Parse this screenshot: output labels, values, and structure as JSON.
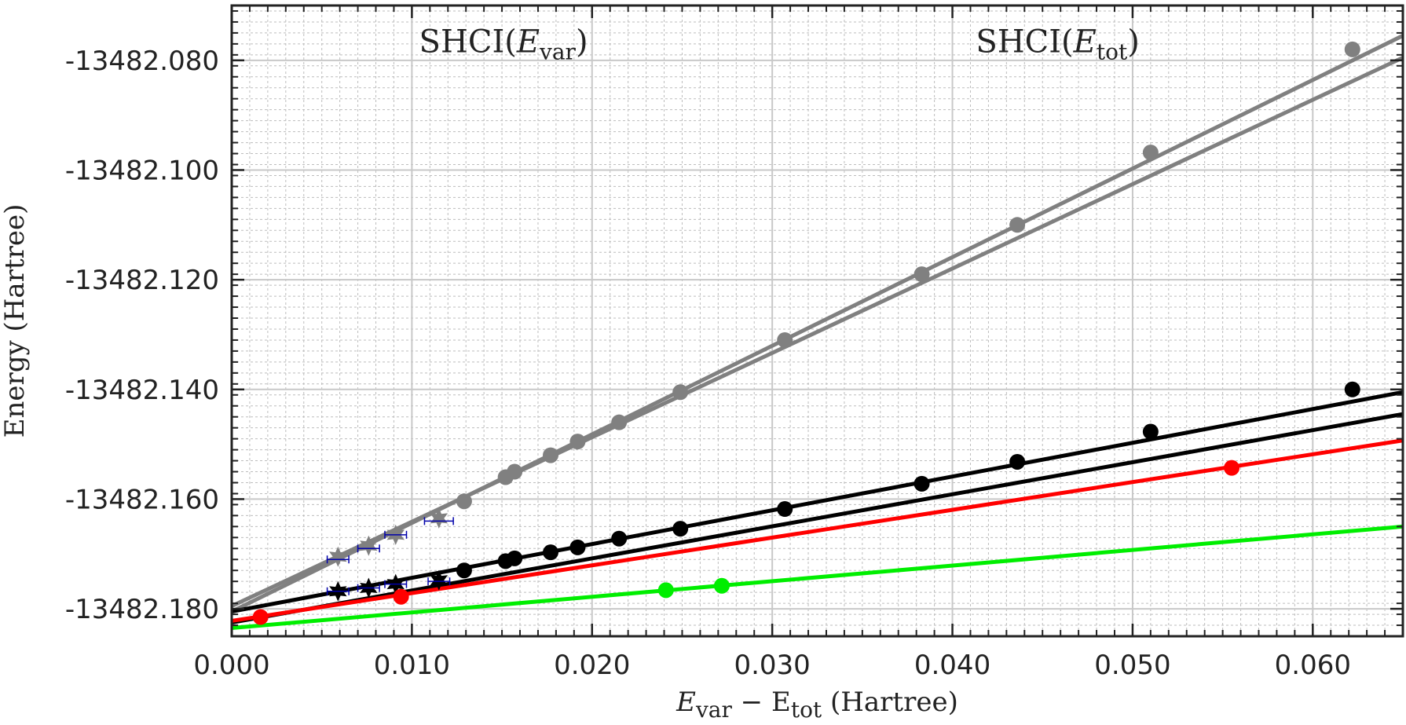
{
  "chart_data": {
    "type": "scatter",
    "title": "",
    "xlabel": {
      "prefix": "E",
      "sub1": "var",
      "mid": " − E",
      "sub2": "tot",
      "suffix": " (Hartree)"
    },
    "ylabel": "Energy (Hartree)",
    "xlim": [
      0.0,
      0.065
    ],
    "ylim": [
      -13482.185,
      -13482.07
    ],
    "x_ticks": [
      0.0,
      0.01,
      0.02,
      0.03,
      0.04,
      0.05,
      0.06
    ],
    "x_tick_labels": [
      "0.000",
      "0.010",
      "0.020",
      "0.030",
      "0.040",
      "0.050",
      "0.060"
    ],
    "y_ticks": [
      -13482.18,
      -13482.16,
      -13482.14,
      -13482.12,
      -13482.1,
      -13482.08
    ],
    "y_tick_labels": [
      "-13482.180",
      "-13482.160",
      "-13482.140",
      "-13482.120",
      "-13482.100",
      "-13482.080"
    ],
    "grid": true,
    "annotations": [
      {
        "x": 0.0104,
        "y": -13482.0765,
        "prefix": "SHCI(",
        "var": "E",
        "sub": "var",
        "suffix": ")"
      },
      {
        "x": 0.0413,
        "y": -13482.0765,
        "prefix": "SHCI(",
        "var": "E",
        "sub": "tot",
        "suffix": ")"
      }
    ],
    "series": [
      {
        "color": "#808080",
        "marker": "circle",
        "x": [
          0.0129,
          0.0152,
          0.0157,
          0.0177,
          0.0192,
          0.0215,
          0.0249,
          0.0307,
          0.0383,
          0.0436,
          0.051,
          0.0622
        ],
        "y": [
          -13482.1604,
          -13482.156,
          -13482.155,
          -13482.152,
          -13482.1495,
          -13482.146,
          -13482.1405,
          -13482.131,
          -13482.119,
          -13482.11,
          -13482.0968,
          -13482.078
        ]
      },
      {
        "color": "#808080",
        "marker": "star",
        "x": [
          0.0059,
          0.0076,
          0.0091,
          0.0115
        ],
        "y": [
          -13482.1705,
          -13482.1685,
          -13482.1665,
          -13482.1635
        ]
      },
      {
        "color": "#000000",
        "marker": "circle",
        "x": [
          0.0129,
          0.0152,
          0.0157,
          0.0177,
          0.0192,
          0.0215,
          0.0249,
          0.0307,
          0.0383,
          0.0436,
          0.051,
          0.0622
        ],
        "y": [
          -13482.173,
          -13482.1713,
          -13482.1708,
          -13482.1697,
          -13482.1688,
          -13482.1672,
          -13482.1654,
          -13482.1618,
          -13482.1572,
          -13482.1532,
          -13482.1477,
          -13482.14
        ]
      },
      {
        "color": "#000000",
        "marker": "star",
        "x": [
          0.0059,
          0.0076,
          0.0091,
          0.0115
        ],
        "y": [
          -13482.1768,
          -13482.1762,
          -13482.1755,
          -13482.1748
        ]
      },
      {
        "color": "#ff0000",
        "marker": "circle",
        "x": [
          0.0016,
          0.0094,
          0.0555
        ],
        "y": [
          -13482.1815,
          -13482.1778,
          -13482.1543
        ]
      },
      {
        "color": "#00ee00",
        "marker": "circle",
        "x": [
          0.0241,
          0.0272
        ],
        "y": [
          -13482.1766,
          -13482.1758
        ]
      }
    ],
    "error_bars": {
      "color": "#0000aa",
      "points": [
        {
          "x": 0.0059,
          "y": -13482.171,
          "xerr": 0.0006
        },
        {
          "x": 0.0076,
          "y": -13482.169,
          "xerr": 0.0006
        },
        {
          "x": 0.0091,
          "y": -13482.1665,
          "xerr": 0.0006
        },
        {
          "x": 0.0115,
          "y": -13482.164,
          "xerr": 0.0008
        },
        {
          "x": 0.0059,
          "y": -13482.1768,
          "xerr": 0.0006
        },
        {
          "x": 0.0076,
          "y": -13482.1762,
          "xerr": 0.0006
        },
        {
          "x": 0.0091,
          "y": -13482.1755,
          "xerr": 0.0006
        },
        {
          "x": 0.0115,
          "y": -13482.175,
          "xerr": 0.0006
        }
      ]
    },
    "fit_lines": [
      {
        "color": "#808080",
        "x": [
          0.0,
          0.065
        ],
        "y": [
          -13482.1805,
          -13482.0755
        ]
      },
      {
        "color": "#808080",
        "x": [
          0.0,
          0.065
        ],
        "y": [
          -13482.1795,
          -13482.0795
        ]
      },
      {
        "color": "#000000",
        "x": [
          0.0,
          0.065
        ],
        "y": [
          -13482.1805,
          -13482.1405
        ]
      },
      {
        "color": "#000000",
        "x": [
          0.0,
          0.065
        ],
        "y": [
          -13482.1825,
          -13482.1445
        ]
      },
      {
        "color": "#ff0000",
        "x": [
          0.0,
          0.065
        ],
        "y": [
          -13482.1822,
          -13482.1493
        ]
      },
      {
        "color": "#00ee00",
        "x": [
          0.0,
          0.065
        ],
        "y": [
          -13482.1835,
          -13482.165
        ]
      }
    ]
  }
}
